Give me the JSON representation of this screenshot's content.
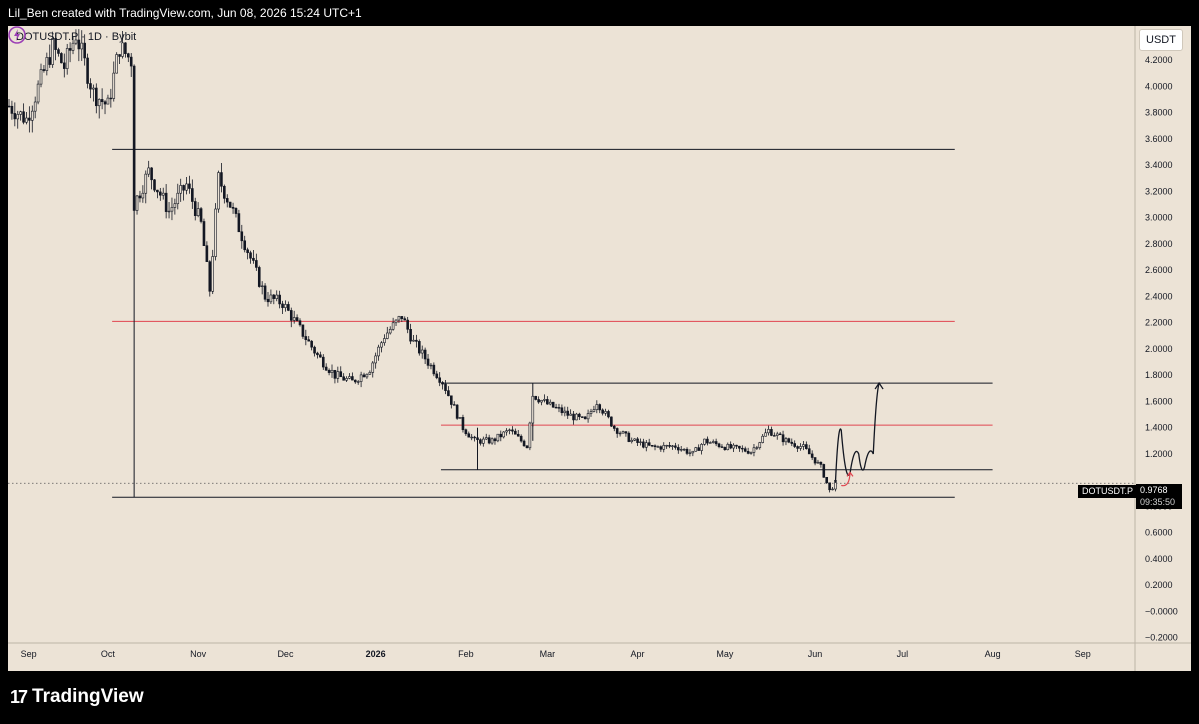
{
  "header": {
    "caption": "Lil_Ben created with TradingView.com, Jun 08, 2026 15:24 UTC+1"
  },
  "chart_header": {
    "symbol": "DOTUSDT.P · 1D · Bybit",
    "currency": "USDT"
  },
  "price_marker": {
    "ticker": "DOTUSDT.P",
    "price": "0.9768",
    "countdown": "09:35:50"
  },
  "footer": {
    "brand": "TradingView"
  },
  "colors": {
    "background": "#ece3d6",
    "candle": "#131722",
    "resistance": "#e0454f",
    "frame": "#000000"
  },
  "chart_data": {
    "type": "candlestick",
    "title": "",
    "ylabel": "",
    "xlabel": "",
    "ylim": [
      -0.24,
      4.46
    ],
    "y_ticks": [
      -0.2,
      0.0,
      0.2,
      0.4,
      0.6,
      0.8,
      1.0,
      1.2,
      1.4,
      1.6,
      1.8,
      2.0,
      2.2,
      2.4,
      2.6,
      2.8,
      3.0,
      3.2,
      3.4,
      3.6,
      3.8,
      4.0,
      4.2
    ],
    "y_tick_labels": [
      "−0.2000",
      "−0.0000",
      "0.2000",
      "0.4000",
      "0.6000",
      "0.8000",
      "",
      "1.2000",
      "1.4000",
      "1.6000",
      "1.8000",
      "2.0000",
      "2.2000",
      "2.4000",
      "2.6000",
      "2.8000",
      "3.0000",
      "3.2000",
      "3.4000",
      "3.6000",
      "3.8000",
      "4.0000",
      "4.2000"
    ],
    "x_ticks": [
      {
        "label": "Sep",
        "date": "2025-09-01",
        "bold": false
      },
      {
        "label": "Oct",
        "date": "2025-10-01",
        "bold": false
      },
      {
        "label": "Nov",
        "date": "2025-11-01",
        "bold": false
      },
      {
        "label": "Dec",
        "date": "2025-12-01",
        "bold": false
      },
      {
        "label": "2026",
        "date": "2026-01-01",
        "bold": true
      },
      {
        "label": "Feb",
        "date": "2026-02-01",
        "bold": false
      },
      {
        "label": "Mar",
        "date": "2026-03-01",
        "bold": false
      },
      {
        "label": "Apr",
        "date": "2026-04-01",
        "bold": false
      },
      {
        "label": "May",
        "date": "2026-05-01",
        "bold": false
      },
      {
        "label": "Jun",
        "date": "2026-06-01",
        "bold": false
      },
      {
        "label": "Jul",
        "date": "2026-07-01",
        "bold": false
      },
      {
        "label": "Aug",
        "date": "2026-08-01",
        "bold": false
      },
      {
        "label": "Sep",
        "date": "2026-09-01",
        "bold": false
      }
    ],
    "price_path": [
      [
        "2025-08-28",
        3.85
      ],
      [
        "2025-09-03",
        3.75
      ],
      [
        "2025-09-08",
        4.05
      ],
      [
        "2025-09-12",
        4.3
      ],
      [
        "2025-09-16",
        4.15
      ],
      [
        "2025-09-20",
        4.4
      ],
      [
        "2025-09-26",
        3.95
      ],
      [
        "2025-10-01",
        3.85
      ],
      [
        "2025-10-05",
        4.3
      ],
      [
        "2025-10-09",
        4.2
      ],
      [
        "2025-10-10",
        3.1
      ],
      [
        "2025-10-15",
        3.35
      ],
      [
        "2025-10-22",
        3.05
      ],
      [
        "2025-10-28",
        3.25
      ],
      [
        "2025-11-02",
        2.95
      ],
      [
        "2025-11-05",
        2.45
      ],
      [
        "2025-11-08",
        3.3
      ],
      [
        "2025-11-12",
        3.1
      ],
      [
        "2025-11-18",
        2.75
      ],
      [
        "2025-11-24",
        2.4
      ],
      [
        "2025-11-30",
        2.35
      ],
      [
        "2025-12-06",
        2.15
      ],
      [
        "2025-12-12",
        1.95
      ],
      [
        "2025-12-18",
        1.8
      ],
      [
        "2025-12-24",
        1.75
      ],
      [
        "2025-12-30",
        1.85
      ],
      [
        "2026-01-04",
        2.1
      ],
      [
        "2026-01-10",
        2.25
      ],
      [
        "2026-01-14",
        2.05
      ],
      [
        "2026-01-19",
        1.9
      ],
      [
        "2026-01-24",
        1.75
      ],
      [
        "2026-01-28",
        1.55
      ],
      [
        "2026-01-31",
        1.4
      ],
      [
        "2026-02-04",
        1.3
      ],
      [
        "2026-02-10",
        1.3
      ],
      [
        "2026-02-16",
        1.38
      ],
      [
        "2026-02-22",
        1.26
      ],
      [
        "2026-02-24",
        1.65
      ],
      [
        "2026-03-01",
        1.58
      ],
      [
        "2026-03-08",
        1.5
      ],
      [
        "2026-03-14",
        1.45
      ],
      [
        "2026-03-18",
        1.6
      ],
      [
        "2026-03-24",
        1.4
      ],
      [
        "2026-03-30",
        1.3
      ],
      [
        "2026-04-06",
        1.25
      ],
      [
        "2026-04-14",
        1.26
      ],
      [
        "2026-04-20",
        1.2
      ],
      [
        "2026-04-24",
        1.3
      ],
      [
        "2026-05-02",
        1.25
      ],
      [
        "2026-05-10",
        1.22
      ],
      [
        "2026-05-16",
        1.38
      ],
      [
        "2026-05-22",
        1.3
      ],
      [
        "2026-05-28",
        1.25
      ],
      [
        "2026-06-03",
        1.1
      ],
      [
        "2026-06-06",
        0.92
      ],
      [
        "2026-06-08",
        0.98
      ]
    ],
    "horizontal_levels": [
      {
        "price": 3.52,
        "color": "#131722",
        "start": "2025-10-10",
        "end": "2026-07-19"
      },
      {
        "price": 2.21,
        "color": "#e0454f",
        "start": "2025-10-10",
        "end": "2026-07-19"
      },
      {
        "price": 1.74,
        "color": "#131722",
        "start": "2026-01-31",
        "end": "2026-08-01"
      },
      {
        "price": 1.42,
        "color": "#e0454f",
        "start": "2026-01-31",
        "end": "2026-08-01"
      },
      {
        "price": 1.08,
        "color": "#131722",
        "start": "2026-01-31",
        "end": "2026-08-01"
      },
      {
        "price": 0.87,
        "color": "#131722",
        "start": "2025-10-10",
        "end": "2026-07-19"
      }
    ],
    "vertical_lines": [
      {
        "date": "2025-10-10",
        "from": 3.52,
        "to": 0.87
      },
      {
        "date": "2026-02-05",
        "from": 1.4,
        "to": 1.08
      },
      {
        "date": "2026-02-24",
        "from": 1.74,
        "to": 1.3
      }
    ],
    "current_price": 0.9768,
    "projection_path": [
      [
        "2026-06-08",
        0.98
      ],
      [
        "2026-06-10",
        1.38
      ],
      [
        "2026-06-13",
        1.05
      ],
      [
        "2026-06-16",
        1.2
      ],
      [
        "2026-06-18",
        1.1
      ],
      [
        "2026-06-21",
        1.2
      ],
      [
        "2026-06-23",
        1.74
      ]
    ],
    "small_projection": [
      [
        "2026-06-10",
        0.96
      ],
      [
        "2026-06-13",
        1.06
      ]
    ]
  }
}
